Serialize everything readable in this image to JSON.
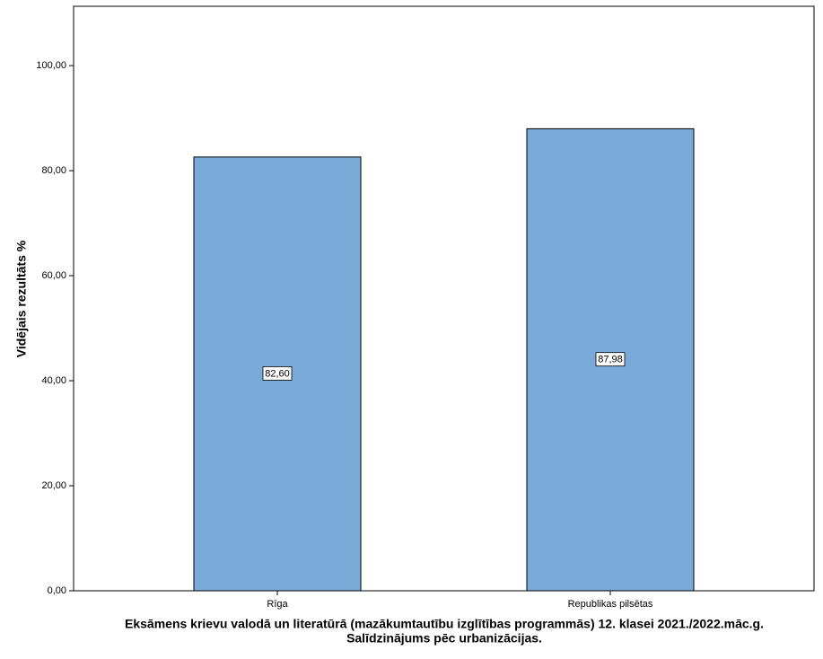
{
  "chart_data": {
    "type": "bar",
    "categories": [
      "Rīga",
      "Republikas pilsētas"
    ],
    "values": [
      82.6,
      87.98
    ],
    "value_labels": [
      "82,60",
      "87,98"
    ],
    "color": "#7aaad7",
    "ylabel": "Vidējais rezultāts %",
    "xlabel": [
      "Eksāmens krievu valodā un literatūrā (mazākumtautību izglītības programmās) 12. klasei 2021./2022.māc.g.",
      "Salīdzinājums pēc urbanizācijas."
    ],
    "ylim": [
      0,
      111.3
    ],
    "yticks": [
      {
        "value": 0,
        "label": "0,00"
      },
      {
        "value": 20,
        "label": "20,00"
      },
      {
        "value": 40,
        "label": "40,00"
      },
      {
        "value": 60,
        "label": "60,00"
      },
      {
        "value": 80,
        "label": "80,00"
      },
      {
        "value": 100,
        "label": "100,00"
      }
    ]
  }
}
